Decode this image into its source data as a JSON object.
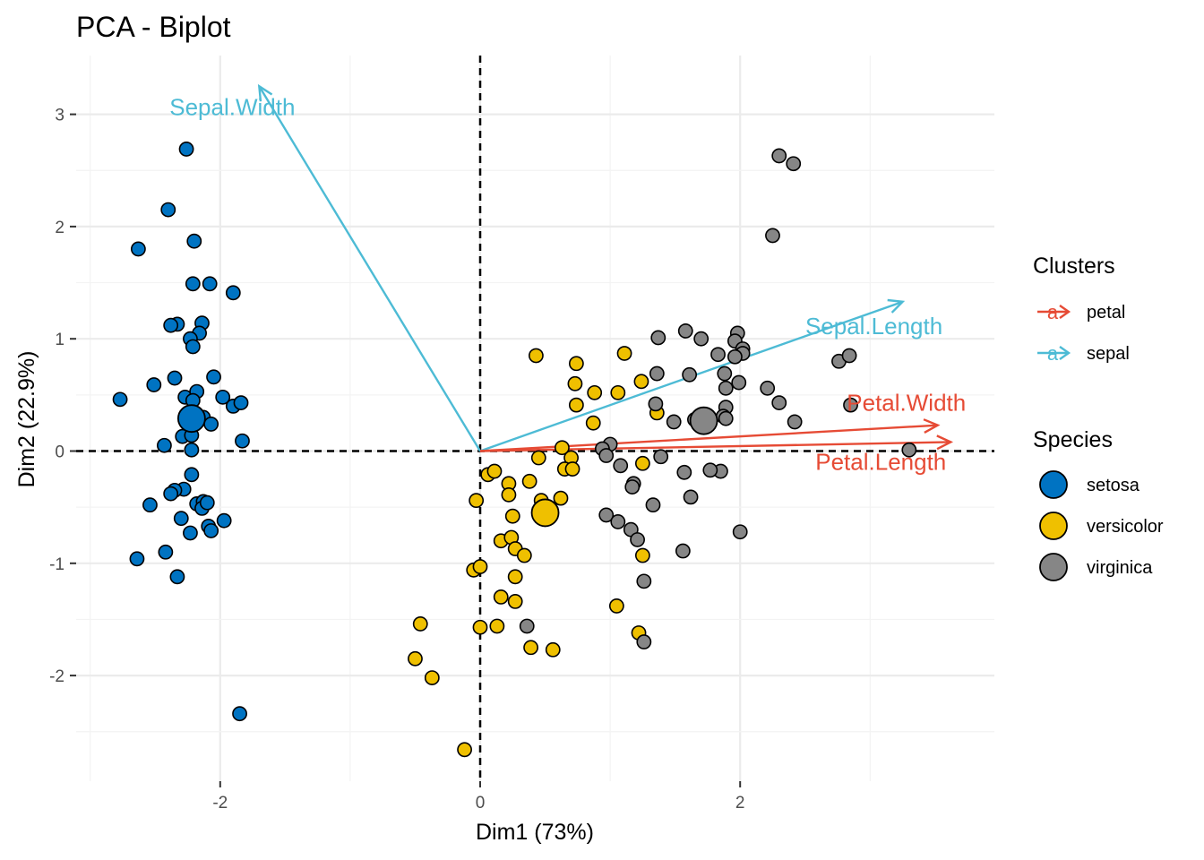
{
  "chart_data": {
    "type": "scatter",
    "subtype": "pca-biplot",
    "title": "PCA - Biplot",
    "xlabel": "Dim1 (73%)",
    "ylabel": "Dim2 (22.9%)",
    "xlim": [
      -3.0,
      3.9
    ],
    "ylim": [
      -2.95,
      3.5
    ],
    "x_ticks": [
      -2,
      0,
      2
    ],
    "y_ticks": [
      -2,
      -1,
      0,
      1,
      2,
      3
    ],
    "x_tick_labels": [
      "-2",
      "0",
      "2"
    ],
    "y_tick_labels": [
      "-2",
      "-1",
      "0",
      "1",
      "2",
      "3"
    ],
    "grid": true,
    "reference_lines": {
      "x": 0,
      "y": 0
    },
    "legend_position": "right",
    "species_legend_title": "Species",
    "cluster_legend_title": "Clusters",
    "species": [
      {
        "name": "setosa",
        "color": "#0073C2",
        "centroid": [
          -2.22,
          0.29
        ],
        "points": [
          [
            -2.26,
            2.69
          ],
          [
            -2.4,
            2.15
          ],
          [
            -2.2,
            1.87
          ],
          [
            -2.63,
            1.8
          ],
          [
            -2.21,
            1.49
          ],
          [
            -2.08,
            1.49
          ],
          [
            -1.9,
            1.41
          ],
          [
            -2.33,
            1.13
          ],
          [
            -2.38,
            1.12
          ],
          [
            -2.14,
            1.14
          ],
          [
            -2.16,
            1.05
          ],
          [
            -2.23,
            1.0
          ],
          [
            -2.21,
            0.93
          ],
          [
            -2.35,
            0.65
          ],
          [
            -2.51,
            0.59
          ],
          [
            -2.05,
            0.66
          ],
          [
            -2.27,
            0.48
          ],
          [
            -2.18,
            0.53
          ],
          [
            -2.21,
            0.45
          ],
          [
            -1.98,
            0.48
          ],
          [
            -1.9,
            0.4
          ],
          [
            -1.84,
            0.43
          ],
          [
            -2.77,
            0.46
          ],
          [
            -2.21,
            0.34
          ],
          [
            -2.13,
            0.3
          ],
          [
            -2.07,
            0.24
          ],
          [
            -2.29,
            0.13
          ],
          [
            -2.22,
            0.14
          ],
          [
            -1.83,
            0.09
          ],
          [
            -2.43,
            0.05
          ],
          [
            -2.22,
            0.01
          ],
          [
            -2.22,
            -0.21
          ],
          [
            -2.28,
            -0.34
          ],
          [
            -2.35,
            -0.35
          ],
          [
            -2.38,
            -0.38
          ],
          [
            -2.54,
            -0.48
          ],
          [
            -2.18,
            -0.47
          ],
          [
            -2.13,
            -0.45
          ],
          [
            -2.14,
            -0.51
          ],
          [
            -2.1,
            -0.46
          ],
          [
            -2.3,
            -0.6
          ],
          [
            -1.97,
            -0.62
          ],
          [
            -2.09,
            -0.67
          ],
          [
            -2.07,
            -0.71
          ],
          [
            -2.23,
            -0.73
          ],
          [
            -2.42,
            -0.9
          ],
          [
            -2.64,
            -0.96
          ],
          [
            -2.33,
            -1.12
          ],
          [
            -1.85,
            -2.34
          ]
        ]
      },
      {
        "name": "versicolor",
        "color": "#EFC000",
        "centroid": [
          0.5,
          -0.55
        ],
        "points": [
          [
            0.43,
            0.85
          ],
          [
            0.74,
            0.78
          ],
          [
            1.11,
            0.87
          ],
          [
            0.73,
            0.6
          ],
          [
            0.74,
            0.41
          ],
          [
            0.88,
            0.52
          ],
          [
            1.06,
            0.52
          ],
          [
            1.24,
            0.62
          ],
          [
            1.36,
            0.34
          ],
          [
            0.87,
            0.25
          ],
          [
            0.63,
            0.03
          ],
          [
            0.45,
            -0.06
          ],
          [
            0.7,
            -0.06
          ],
          [
            0.65,
            -0.16
          ],
          [
            0.06,
            -0.21
          ],
          [
            0.11,
            -0.18
          ],
          [
            0.22,
            -0.29
          ],
          [
            0.22,
            -0.39
          ],
          [
            0.38,
            -0.27
          ],
          [
            0.47,
            -0.44
          ],
          [
            0.62,
            -0.42
          ],
          [
            -0.03,
            -0.44
          ],
          [
            0.25,
            -0.58
          ],
          [
            0.16,
            -0.8
          ],
          [
            0.24,
            -0.77
          ],
          [
            0.27,
            -0.87
          ],
          [
            0.34,
            -0.93
          ],
          [
            0.27,
            -1.12
          ],
          [
            -0.05,
            -1.06
          ],
          [
            0.0,
            -1.03
          ],
          [
            0.16,
            -1.3
          ],
          [
            0.27,
            -1.34
          ],
          [
            1.25,
            -0.93
          ],
          [
            1.05,
            -1.38
          ],
          [
            0.0,
            -1.57
          ],
          [
            0.13,
            -1.56
          ],
          [
            1.22,
            -1.62
          ],
          [
            0.39,
            -1.75
          ],
          [
            0.56,
            -1.77
          ],
          [
            -0.46,
            -1.54
          ],
          [
            -0.5,
            -1.85
          ],
          [
            -0.37,
            -2.02
          ],
          [
            -0.12,
            -2.66
          ],
          [
            0.71,
            -0.16
          ],
          [
            1.25,
            -0.11
          ],
          [
            0.48,
            -0.56
          ]
        ]
      },
      {
        "name": "virginica",
        "color": "#868686",
        "centroid": [
          1.72,
          0.27
        ],
        "points": [
          [
            2.3,
            2.63
          ],
          [
            2.41,
            2.56
          ],
          [
            2.25,
            1.92
          ],
          [
            1.98,
            1.05
          ],
          [
            1.96,
            0.98
          ],
          [
            2.02,
            0.91
          ],
          [
            2.02,
            0.87
          ],
          [
            1.96,
            0.84
          ],
          [
            1.58,
            1.07
          ],
          [
            1.7,
            1.0
          ],
          [
            1.37,
            1.01
          ],
          [
            1.83,
            0.86
          ],
          [
            1.88,
            0.69
          ],
          [
            1.36,
            0.69
          ],
          [
            1.61,
            0.68
          ],
          [
            1.89,
            0.56
          ],
          [
            1.99,
            0.61
          ],
          [
            2.21,
            0.56
          ],
          [
            2.3,
            0.43
          ],
          [
            2.76,
            0.8
          ],
          [
            2.84,
            0.85
          ],
          [
            2.85,
            0.41
          ],
          [
            1.35,
            0.42
          ],
          [
            1.49,
            0.26
          ],
          [
            1.65,
            0.28
          ],
          [
            1.89,
            0.39
          ],
          [
            1.87,
            0.31
          ],
          [
            1.89,
            0.29
          ],
          [
            2.42,
            0.26
          ],
          [
            3.3,
            0.01
          ],
          [
            1.0,
            0.06
          ],
          [
            1.08,
            -0.13
          ],
          [
            0.94,
            0.02
          ],
          [
            0.97,
            -0.04
          ],
          [
            1.39,
            -0.05
          ],
          [
            1.57,
            -0.19
          ],
          [
            1.18,
            -0.29
          ],
          [
            1.17,
            -0.32
          ],
          [
            1.62,
            -0.41
          ],
          [
            1.33,
            -0.48
          ],
          [
            0.97,
            -0.57
          ],
          [
            1.06,
            -0.63
          ],
          [
            1.16,
            -0.7
          ],
          [
            1.21,
            -0.79
          ],
          [
            1.85,
            -0.18
          ],
          [
            1.77,
            -0.17
          ],
          [
            1.56,
            -0.89
          ],
          [
            2.0,
            -0.72
          ],
          [
            1.26,
            -1.16
          ],
          [
            0.36,
            -1.56
          ],
          [
            1.26,
            -1.7
          ]
        ]
      }
    ],
    "variables": [
      {
        "name": "Sepal.Width",
        "cluster": "sepal",
        "x": -1.7,
        "y": 3.25
      },
      {
        "name": "Sepal.Length",
        "cluster": "sepal",
        "x": 3.25,
        "y": 1.33
      },
      {
        "name": "Petal.Width",
        "cluster": "petal",
        "x": 3.52,
        "y": 0.23
      },
      {
        "name": "Petal.Length",
        "cluster": "petal",
        "x": 3.62,
        "y": 0.08
      }
    ],
    "clusters": [
      {
        "name": "petal",
        "color": "#E64B35"
      },
      {
        "name": "sepal",
        "color": "#4DBBD5"
      }
    ]
  }
}
